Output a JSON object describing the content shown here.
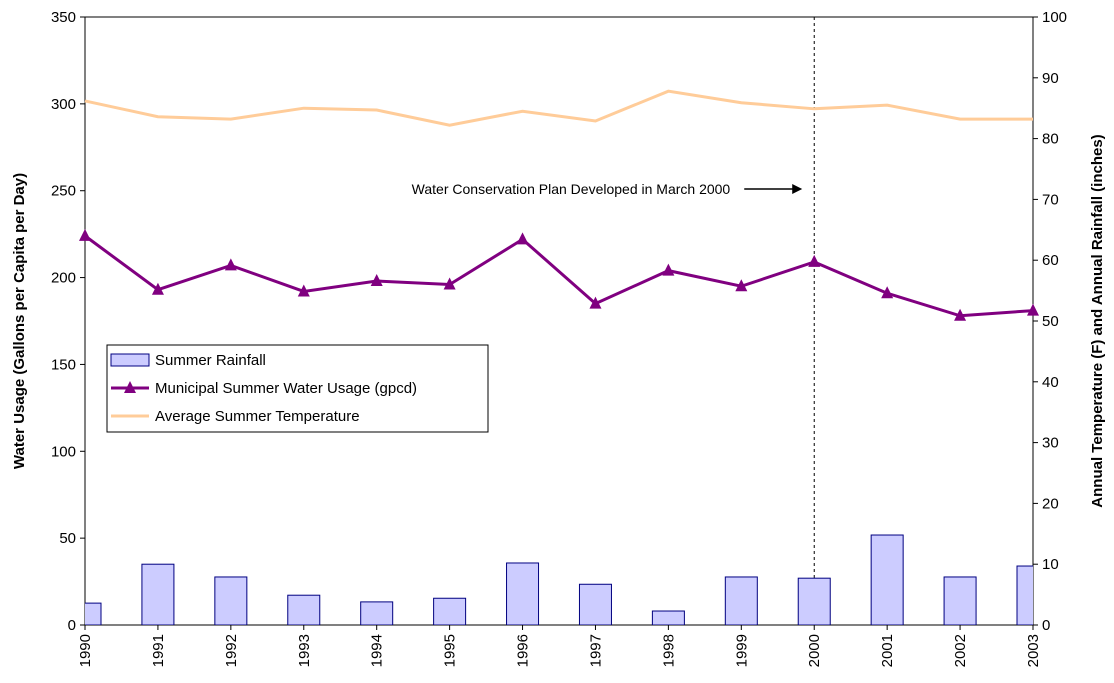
{
  "chart_data": {
    "type": "combo",
    "x": [
      1990,
      1991,
      1992,
      1993,
      1994,
      1995,
      1996,
      1997,
      1998,
      1999,
      2000,
      2001,
      2002,
      2003
    ],
    "xlim": [
      1990,
      2003
    ],
    "xticks": [
      1990,
      1991,
      1992,
      1993,
      1994,
      1995,
      1996,
      1997,
      1998,
      1999,
      2000,
      2001,
      2002,
      2003
    ],
    "ylabel": "Water Usage (Gallons per Capita per Day)",
    "y2label": "Annual Temperature (F) and Annual Rainfall (inches)",
    "ylim": [
      0,
      350
    ],
    "yticks": [
      0,
      50,
      100,
      150,
      200,
      250,
      300,
      350
    ],
    "y2lim": [
      0,
      100
    ],
    "y2ticks": [
      0,
      10,
      20,
      30,
      40,
      50,
      60,
      70,
      80,
      90,
      100
    ],
    "series": [
      {
        "name": "Summer Rainfall",
        "type": "bar",
        "axis": "y2",
        "color": "#ccccff",
        "values": [
          3.6,
          10.0,
          7.9,
          4.9,
          3.8,
          4.4,
          10.2,
          6.7,
          2.3,
          7.9,
          7.7,
          14.8,
          7.9,
          9.7
        ]
      },
      {
        "name": "Municipal Summer Water Usage (gpcd)",
        "type": "line",
        "marker": "triangle",
        "color": "#800080",
        "values": [
          224,
          193,
          207,
          192,
          198,
          196,
          222,
          185,
          204,
          195,
          209,
          191,
          178,
          181
        ]
      },
      {
        "name": "Average Summer Temperature",
        "type": "line",
        "axis": "y2",
        "color": "#ffcc99",
        "values": [
          86.2,
          83.6,
          83.2,
          85.0,
          84.7,
          82.2,
          84.5,
          82.9,
          87.8,
          85.9,
          84.9,
          85.5,
          83.2,
          83.2
        ]
      }
    ],
    "annotation": {
      "text": "Water Conservation Plan Developed in March 2000",
      "x": 2000
    },
    "legend": "left"
  }
}
